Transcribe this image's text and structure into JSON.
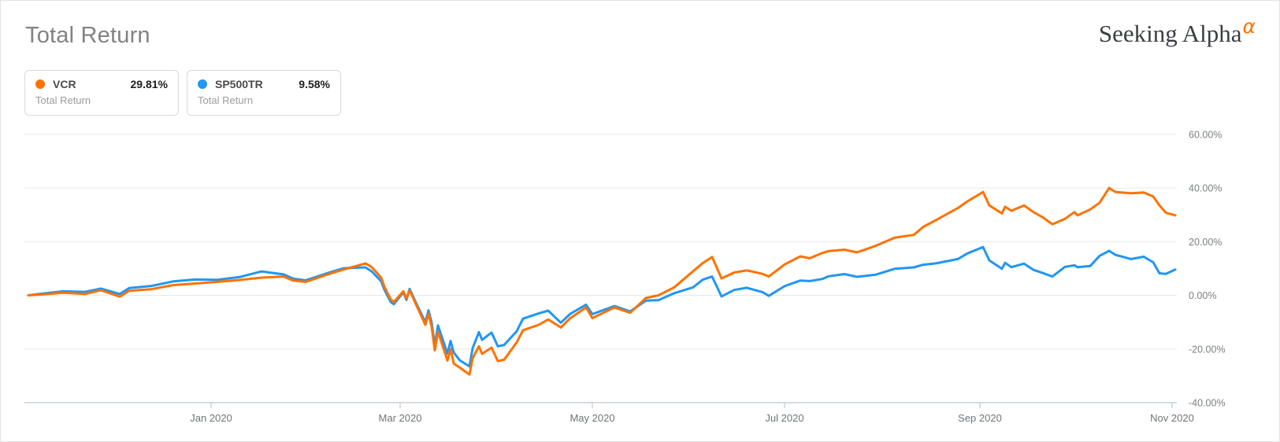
{
  "header": {
    "title": "Total Return",
    "brand": {
      "name": "Seeking Alpha",
      "alpha_symbol": "α",
      "alpha_color": "#ff7200"
    }
  },
  "legend": [
    {
      "ticker": "VCR",
      "value": "29.81%",
      "sublabel": "Total Return",
      "color": "#ff7200"
    },
    {
      "ticker": "SP500TR",
      "value": "9.58%",
      "sublabel": "Total Return",
      "color": "#2196f3"
    }
  ],
  "chart_data": {
    "type": "line",
    "title": "Total Return",
    "grid": true,
    "legend_position": "top-left",
    "ylim": [
      -40,
      64
    ],
    "y_axis": {
      "ticks": [
        60,
        40,
        20,
        0,
        -20,
        -40
      ],
      "tick_labels": [
        "60.00%",
        "40.00%",
        "20.00%",
        "0.00%",
        "-20.00%",
        "-40.00%"
      ]
    },
    "x_axis": {
      "ticks": [
        {
          "date": "2020-01-01",
          "label": "Jan 2020"
        },
        {
          "date": "2020-03-01",
          "label": "Mar 2020"
        },
        {
          "date": "2020-05-01",
          "label": "May 2020"
        },
        {
          "date": "2020-07-01",
          "label": "Jul 2020"
        },
        {
          "date": "2020-09-01",
          "label": "Sep 2020"
        },
        {
          "date": "2020-11-01",
          "label": "Nov 2020"
        }
      ],
      "range": [
        "2019-11-04",
        "2020-11-02"
      ]
    },
    "dates": [
      "2019-11-04",
      "2019-11-08",
      "2019-11-15",
      "2019-11-22",
      "2019-11-27",
      "2019-12-03",
      "2019-12-06",
      "2019-12-13",
      "2019-12-20",
      "2019-12-27",
      "2020-01-03",
      "2020-01-10",
      "2020-01-17",
      "2020-01-24",
      "2020-01-27",
      "2020-01-31",
      "2020-02-07",
      "2020-02-12",
      "2020-02-19",
      "2020-02-21",
      "2020-02-24",
      "2020-02-25",
      "2020-02-27",
      "2020-02-28",
      "2020-03-02",
      "2020-03-03",
      "2020-03-04",
      "2020-03-06",
      "2020-03-09",
      "2020-03-10",
      "2020-03-11",
      "2020-03-12",
      "2020-03-13",
      "2020-03-16",
      "2020-03-17",
      "2020-03-18",
      "2020-03-20",
      "2020-03-23",
      "2020-03-24",
      "2020-03-26",
      "2020-03-27",
      "2020-03-30",
      "2020-04-01",
      "2020-04-03",
      "2020-04-07",
      "2020-04-09",
      "2020-04-14",
      "2020-04-17",
      "2020-04-21",
      "2020-04-24",
      "2020-04-29",
      "2020-05-01",
      "2020-05-08",
      "2020-05-13",
      "2020-05-18",
      "2020-05-22",
      "2020-05-27",
      "2020-06-02",
      "2020-06-05",
      "2020-06-08",
      "2020-06-11",
      "2020-06-15",
      "2020-06-19",
      "2020-06-24",
      "2020-06-26",
      "2020-07-01",
      "2020-07-06",
      "2020-07-09",
      "2020-07-13",
      "2020-07-15",
      "2020-07-20",
      "2020-07-24",
      "2020-07-30",
      "2020-08-05",
      "2020-08-11",
      "2020-08-14",
      "2020-08-18",
      "2020-08-25",
      "2020-08-28",
      "2020-09-02",
      "2020-09-04",
      "2020-09-08",
      "2020-09-09",
      "2020-09-11",
      "2020-09-15",
      "2020-09-18",
      "2020-09-21",
      "2020-09-24",
      "2020-09-28",
      "2020-10-01",
      "2020-10-02",
      "2020-10-06",
      "2020-10-09",
      "2020-10-12",
      "2020-10-14",
      "2020-10-19",
      "2020-10-23",
      "2020-10-26",
      "2020-10-28",
      "2020-10-30",
      "2020-11-02"
    ],
    "series": [
      {
        "name": "VCR",
        "label": "Total Return",
        "color": "#ff7200",
        "final_value": "29.81%",
        "values": [
          0.0,
          0.3,
          1.0,
          0.5,
          1.9,
          -0.5,
          1.7,
          2.3,
          3.8,
          4.4,
          5.0,
          5.7,
          6.6,
          7.0,
          5.5,
          5.0,
          7.8,
          9.6,
          11.9,
          10.5,
          6.5,
          3.2,
          -1.5,
          -2.5,
          1.5,
          -1.2,
          1.9,
          -3.3,
          -11.0,
          -6.8,
          -11.8,
          -20.5,
          -13.5,
          -24.3,
          -20.0,
          -25.4,
          -27.0,
          -29.5,
          -23.5,
          -19.0,
          -21.8,
          -19.5,
          -24.5,
          -24.0,
          -17.5,
          -13.0,
          -11.0,
          -9.0,
          -12.0,
          -8.5,
          -4.5,
          -8.5,
          -4.5,
          -6.5,
          -1.0,
          0.0,
          3.0,
          9.0,
          12.0,
          14.3,
          6.3,
          8.5,
          9.3,
          8.0,
          7.0,
          11.5,
          14.5,
          13.8,
          15.8,
          16.5,
          17.0,
          16.0,
          18.5,
          21.5,
          22.5,
          25.5,
          28.0,
          32.5,
          35.0,
          38.5,
          33.5,
          30.5,
          33.0,
          31.5,
          33.5,
          31.0,
          29.0,
          26.5,
          28.5,
          31.0,
          29.8,
          32.0,
          34.5,
          40.0,
          38.5,
          38.0,
          38.3,
          36.8,
          33.5,
          30.8,
          29.81
        ]
      },
      {
        "name": "SP500TR",
        "label": "Total Return",
        "color": "#2196f3",
        "final_value": "9.58%",
        "values": [
          0.0,
          0.6,
          1.5,
          1.3,
          2.5,
          0.5,
          2.7,
          3.5,
          5.2,
          5.9,
          5.8,
          6.8,
          8.9,
          7.8,
          6.2,
          5.6,
          8.3,
          10.1,
          10.4,
          8.9,
          5.2,
          2.1,
          -2.5,
          -3.3,
          1.1,
          -1.7,
          2.4,
          -2.7,
          -10.0,
          -5.6,
          -10.2,
          -18.7,
          -11.2,
          -21.7,
          -17.0,
          -21.3,
          -24.3,
          -26.5,
          -19.7,
          -13.7,
          -16.6,
          -13.9,
          -19.0,
          -18.5,
          -13.4,
          -8.7,
          -6.7,
          -5.7,
          -10.2,
          -6.9,
          -3.5,
          -7.0,
          -4.0,
          -6.0,
          -2.0,
          -1.8,
          0.8,
          3.0,
          5.8,
          7.0,
          -0.4,
          2.0,
          2.8,
          1.2,
          -0.2,
          3.4,
          5.5,
          5.3,
          6.1,
          7.1,
          7.9,
          6.9,
          7.7,
          9.9,
          10.4,
          11.4,
          11.9,
          13.5,
          15.6,
          18.0,
          13.0,
          9.9,
          12.1,
          10.5,
          11.8,
          9.5,
          8.3,
          7.0,
          10.6,
          11.2,
          10.5,
          10.9,
          14.7,
          16.6,
          15.1,
          13.5,
          14.4,
          12.3,
          8.2,
          8.0,
          9.58
        ]
      }
    ],
    "colors": {
      "gridline": "#e8e8e8",
      "axis_line": "#c5d1dc",
      "tick_label": "#7a7f84"
    }
  }
}
